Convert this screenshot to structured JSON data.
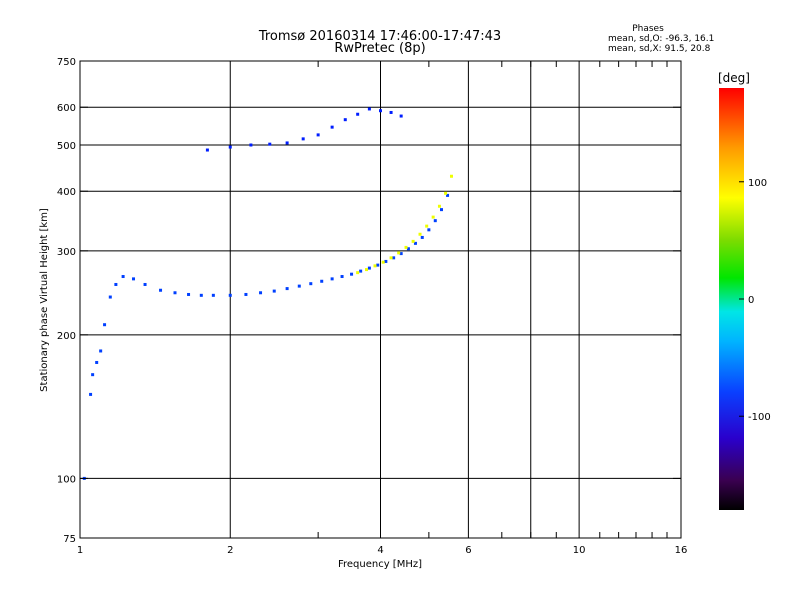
{
  "chart_data": {
    "type": "scatter",
    "title": "Tromsø 20160314 17:46:00-17:47:43",
    "subtitle": "RwPretec (8p)",
    "phase_box": {
      "heading": "Phases",
      "line_o": "mean, sd,O: -96.3, 16.1",
      "line_x": "mean, sd,X:  91.5, 20.8"
    },
    "xlabel": "Frequency [MHz]",
    "ylabel": "Stationary phase Virtual Height [km]",
    "x_scale": "log",
    "y_scale": "log",
    "xlim": [
      1,
      16
    ],
    "ylim": [
      75,
      750
    ],
    "x_ticks": [
      1,
      2,
      4,
      6,
      10,
      16
    ],
    "x_gridlines": [
      2,
      4,
      6,
      8,
      10
    ],
    "x_minor_ticks": [
      3,
      5,
      7,
      8,
      9,
      11,
      12,
      13,
      14,
      15
    ],
    "y_ticks": [
      75,
      100,
      200,
      300,
      400,
      500,
      600,
      750
    ],
    "y_gridlines": [
      100,
      200,
      300,
      400,
      500,
      600
    ],
    "grid": true,
    "colorbar": {
      "label": "[deg]",
      "min": -180,
      "max": 180,
      "ticks": [
        100,
        0,
        -100
      ]
    },
    "series": [
      {
        "id": "o_mode",
        "color_phase_deg": -100,
        "x": [
          1.02,
          1.05,
          1.06,
          1.08,
          1.1,
          1.12,
          1.15,
          1.18,
          1.22,
          1.28,
          1.35,
          1.45,
          1.55,
          1.65,
          1.75,
          1.85,
          2.0,
          2.15,
          2.3,
          2.45,
          2.6,
          2.75,
          2.9,
          3.05,
          3.2,
          3.35,
          3.5,
          3.65,
          3.8,
          3.95,
          4.1,
          4.25,
          4.4,
          4.55,
          4.7,
          4.85,
          5.0,
          5.15,
          5.3,
          5.45
        ],
        "y": [
          100,
          150,
          165,
          175,
          185,
          210,
          240,
          255,
          265,
          262,
          255,
          248,
          245,
          243,
          242,
          242,
          242,
          243,
          245,
          247,
          250,
          253,
          256,
          259,
          262,
          265,
          268,
          272,
          276,
          280,
          285,
          290,
          296,
          303,
          311,
          320,
          332,
          347,
          366,
          392
        ]
      },
      {
        "id": "x_mode",
        "color_phase_deg": 100,
        "x": [
          3.6,
          3.75,
          3.9,
          4.05,
          4.2,
          4.35,
          4.5,
          4.65,
          4.8,
          4.95,
          5.1,
          5.25,
          5.4,
          5.55
        ],
        "y": [
          270,
          274,
          279,
          284,
          290,
          297,
          305,
          314,
          325,
          338,
          353,
          372,
          396,
          430
        ]
      },
      {
        "id": "upper_echoes",
        "color_phase_deg": -110,
        "x": [
          1.8,
          2.0,
          2.2,
          2.4,
          2.6,
          2.8,
          3.0,
          3.2,
          3.4,
          3.6,
          3.8,
          4.0,
          4.2,
          4.4
        ],
        "y": [
          488,
          495,
          500,
          502,
          505,
          515,
          525,
          545,
          565,
          580,
          595,
          590,
          585,
          575
        ]
      }
    ]
  }
}
